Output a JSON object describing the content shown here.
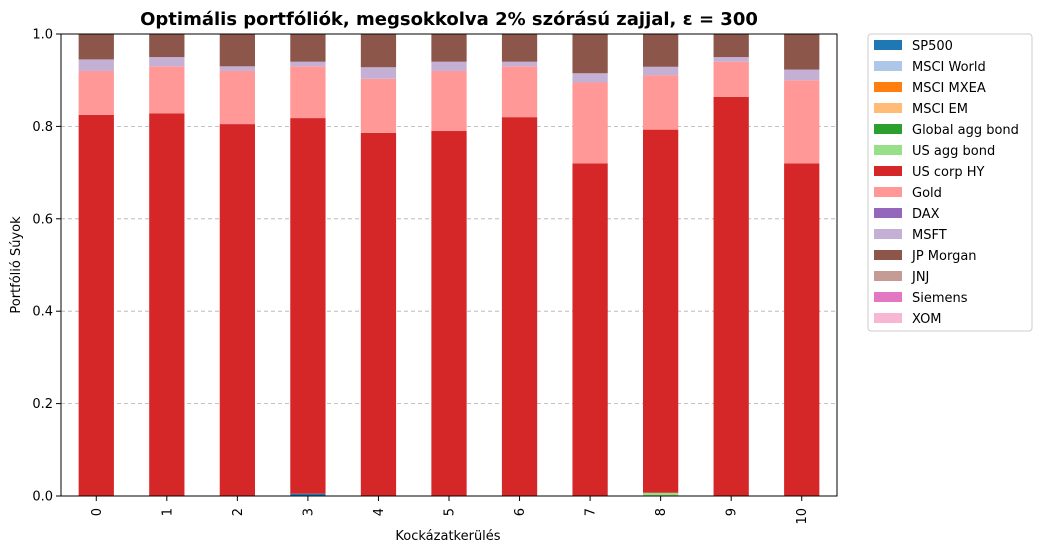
{
  "chart_data": {
    "type": "bar",
    "stacked": true,
    "title": "Optimális portfóliók, megsokkolva 2% szórású zajjal, ε = 300",
    "xlabel": "Kockázatkerülés",
    "ylabel": "Portfólió Súyok",
    "ylim": [
      0,
      1.0
    ],
    "yticks": [
      "0.0",
      "0.2",
      "0.4",
      "0.6",
      "0.8",
      "1.0"
    ],
    "grid": "y-dashed",
    "legend_position": "outside-right",
    "categories": [
      "0",
      "1",
      "2",
      "3",
      "4",
      "5",
      "6",
      "7",
      "8",
      "9",
      "10"
    ],
    "series": [
      {
        "name": "SP500",
        "color": "#1f77b4",
        "values": [
          0,
          0,
          0,
          0.005,
          0,
          0,
          0,
          0,
          0,
          0,
          0
        ]
      },
      {
        "name": "MSCI World",
        "color": "#aec7e8",
        "values": [
          0,
          0,
          0,
          0,
          0,
          0,
          0,
          0,
          0,
          0,
          0
        ]
      },
      {
        "name": "MSCI MXEA",
        "color": "#ff7f0e",
        "values": [
          0,
          0,
          0,
          0,
          0,
          0,
          0,
          0,
          0,
          0,
          0
        ]
      },
      {
        "name": "MSCI EM",
        "color": "#ffbb78",
        "values": [
          0,
          0,
          0,
          0,
          0,
          0,
          0,
          0,
          0,
          0,
          0
        ]
      },
      {
        "name": "Global agg bond",
        "color": "#2ca02c",
        "values": [
          0,
          0,
          0,
          0,
          0,
          0,
          0,
          0,
          0,
          0,
          0
        ]
      },
      {
        "name": "US agg bond",
        "color": "#98df8a",
        "values": [
          0,
          0,
          0,
          0,
          0,
          0,
          0,
          0,
          0.007,
          0,
          0
        ]
      },
      {
        "name": "US corp HY",
        "color": "#d62728",
        "values": [
          0.825,
          0.828,
          0.805,
          0.813,
          0.786,
          0.79,
          0.82,
          0.72,
          0.786,
          0.864,
          0.72
        ]
      },
      {
        "name": "Gold",
        "color": "#ff9896",
        "values": [
          0.095,
          0.102,
          0.115,
          0.112,
          0.117,
          0.13,
          0.11,
          0.175,
          0.118,
          0.076,
          0.18
        ]
      },
      {
        "name": "DAX",
        "color": "#9467bd",
        "values": [
          0,
          0,
          0,
          0,
          0,
          0,
          0,
          0,
          0,
          0,
          0
        ]
      },
      {
        "name": "MSFT",
        "color": "#c5b0d5",
        "values": [
          0.025,
          0.02,
          0.01,
          0.01,
          0.025,
          0.02,
          0.01,
          0.02,
          0.018,
          0.01,
          0.023
        ]
      },
      {
        "name": "JP Morgan",
        "color": "#8c564b",
        "values": [
          0.055,
          0.05,
          0.07,
          0.06,
          0.072,
          0.06,
          0.06,
          0.085,
          0.071,
          0.05,
          0.077
        ]
      },
      {
        "name": "JNJ",
        "color": "#c49c94",
        "values": [
          0,
          0,
          0,
          0,
          0,
          0,
          0,
          0,
          0,
          0,
          0
        ]
      },
      {
        "name": "Siemens",
        "color": "#e377c2",
        "values": [
          0,
          0,
          0,
          0,
          0,
          0,
          0,
          0,
          0,
          0,
          0
        ]
      },
      {
        "name": "XOM",
        "color": "#f7b6d2",
        "values": [
          0,
          0,
          0,
          0,
          0,
          0,
          0,
          0,
          0,
          0,
          0
        ]
      }
    ]
  }
}
